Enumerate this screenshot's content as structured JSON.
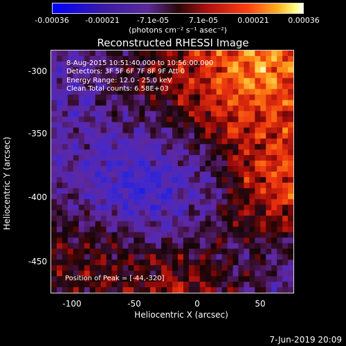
{
  "colorbar": {
    "ticks": [
      "-0.00036",
      "-0.00021",
      "-7.1e-05",
      "7.1e-05",
      "0.00021",
      "0.00036"
    ],
    "tick_values": [
      -0.00036,
      -0.00021,
      -7.1e-05,
      7.1e-05,
      0.00021,
      0.00036
    ],
    "range": [
      -0.00036,
      0.00036
    ],
    "units": "(photons cm⁻² s⁻¹ asec⁻²)"
  },
  "chart_data": {
    "type": "heatmap",
    "title": "Reconstructed RHESSI Image",
    "xlabel": "Heliocentric X (arcsec)",
    "ylabel": "Heliocentric Y (arcsec)",
    "xlim": [
      -113,
      76
    ],
    "ylim": [
      -476,
      -288
    ],
    "x_ticks": [
      "-100",
      "-50",
      "0",
      "50"
    ],
    "x_tick_values": [
      -100,
      -50,
      0,
      50
    ],
    "y_ticks": [
      "-300",
      "-350",
      "-400",
      "-450"
    ],
    "y_tick_values": [
      -300,
      -350,
      -400,
      -450
    ],
    "colormap": "blue-purple-red-yellow-white",
    "peak_position": [
      -44,
      -320
    ]
  },
  "annotations": {
    "time_range": "8-Aug-2015 10:51:40.000 to 10:56:00.000",
    "detectors": "Detectors: 3F 5F 6F 7F 8F 9F  Att 0",
    "energy": "Energy Range: 12.0 - 25.0 keV",
    "clean": "Clean    Total counts: 6.58E+03",
    "peak": "Position of Peak = [-44,-320]"
  },
  "datestamp": "7-Jun-2019 20:09"
}
